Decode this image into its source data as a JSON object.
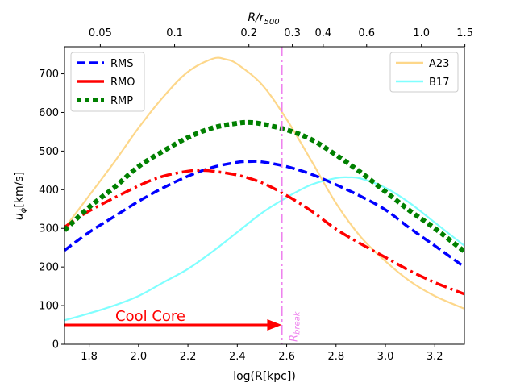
{
  "chart_data": {
    "type": "line",
    "xlabel": "log(R[kpc])",
    "ylabel_main": "u",
    "ylabel_sub": "ϕ",
    "ylabel_unit": "[km/s]",
    "top_axis_label_main": "R/r",
    "top_axis_label_sub": "500",
    "xlim": [
      1.7,
      3.32
    ],
    "ylim": [
      0,
      770
    ],
    "x_ticks": [
      1.8,
      2.0,
      2.2,
      2.4,
      2.6,
      2.8,
      3.0,
      3.2
    ],
    "x_tick_labels": [
      "1.8",
      "2.0",
      "2.2",
      "2.4",
      "2.6",
      "2.8",
      "3.0",
      "3.2"
    ],
    "y_ticks": [
      0,
      100,
      200,
      300,
      400,
      500,
      600,
      700
    ],
    "y_tick_labels": [
      "0",
      "100",
      "200",
      "300",
      "400",
      "500",
      "600",
      "700"
    ],
    "top_ticks": [
      {
        "x": 1.845,
        "label": "0.05"
      },
      {
        "x": 2.146,
        "label": "0.1"
      },
      {
        "x": 2.447,
        "label": "0.2"
      },
      {
        "x": 2.623,
        "label": "0.3"
      },
      {
        "x": 2.748,
        "label": "0.4"
      },
      {
        "x": 2.924,
        "label": "0.6"
      },
      {
        "x": 3.146,
        "label": "1.0"
      },
      {
        "x": 3.322,
        "label": "1.5"
      }
    ],
    "series": [
      {
        "name": "RMS",
        "color": "#0000ff",
        "style": "dashed",
        "x": [
          1.7,
          1.8,
          1.9,
          2.0,
          2.1,
          2.2,
          2.3,
          2.4,
          2.45,
          2.5,
          2.6,
          2.7,
          2.8,
          2.9,
          3.0,
          3.1,
          3.2,
          3.32
        ],
        "y": [
          243,
          290,
          330,
          370,
          405,
          435,
          458,
          471,
          473,
          472,
          460,
          440,
          413,
          383,
          348,
          300,
          255,
          200
        ]
      },
      {
        "name": "RMO",
        "color": "#ff0000",
        "style": "dashdot",
        "x": [
          1.7,
          1.8,
          2.0,
          2.1,
          2.2,
          2.25,
          2.3,
          2.4,
          2.5,
          2.6,
          2.7,
          2.8,
          2.9,
          3.0,
          3.1,
          3.2,
          3.32
        ],
        "y": [
          303,
          345,
          410,
          435,
          448,
          450,
          448,
          438,
          418,
          385,
          345,
          298,
          260,
          225,
          190,
          160,
          130
        ]
      },
      {
        "name": "RMP",
        "color": "#008000",
        "style": "dotted",
        "x": [
          1.7,
          1.8,
          1.9,
          2.0,
          2.1,
          2.2,
          2.3,
          2.4,
          2.45,
          2.5,
          2.6,
          2.7,
          2.8,
          2.9,
          3.0,
          3.1,
          3.2,
          3.32
        ],
        "y": [
          295,
          355,
          405,
          460,
          500,
          535,
          560,
          572,
          574,
          570,
          555,
          530,
          490,
          445,
          395,
          345,
          300,
          240
        ]
      },
      {
        "name": "A23",
        "color": "#fdd78a",
        "style": "solid",
        "x": [
          1.7,
          1.8,
          1.9,
          2.0,
          2.1,
          2.2,
          2.3,
          2.35,
          2.4,
          2.5,
          2.6,
          2.7,
          2.8,
          2.9,
          3.0,
          3.1,
          3.2,
          3.32
        ],
        "y": [
          300,
          385,
          470,
          560,
          640,
          705,
          739,
          738,
          725,
          672,
          582,
          475,
          365,
          278,
          215,
          163,
          125,
          92
        ]
      },
      {
        "name": "B17",
        "color": "#80ffff",
        "style": "solid",
        "x": [
          1.7,
          1.8,
          1.9,
          2.0,
          2.1,
          2.2,
          2.3,
          2.4,
          2.5,
          2.6,
          2.7,
          2.8,
          2.85,
          2.9,
          3.0,
          3.1,
          3.2,
          3.32
        ],
        "y": [
          62,
          80,
          100,
          125,
          160,
          195,
          240,
          290,
          340,
          380,
          413,
          430,
          432,
          429,
          405,
          365,
          315,
          255
        ]
      }
    ],
    "vline": {
      "x": 2.58,
      "label": "R",
      "label_sub": "break",
      "color": "#ee82ee",
      "style": "dashdot"
    },
    "arrow": {
      "x_start": 1.7,
      "x_end": 2.58,
      "y": 50,
      "label": "Cool Core",
      "color": "#ff0000"
    },
    "legends": [
      {
        "location": "upper-left",
        "entries": [
          "RMS",
          "RMO",
          "RMP"
        ]
      },
      {
        "location": "upper-right",
        "entries": [
          "A23",
          "B17"
        ]
      }
    ]
  }
}
